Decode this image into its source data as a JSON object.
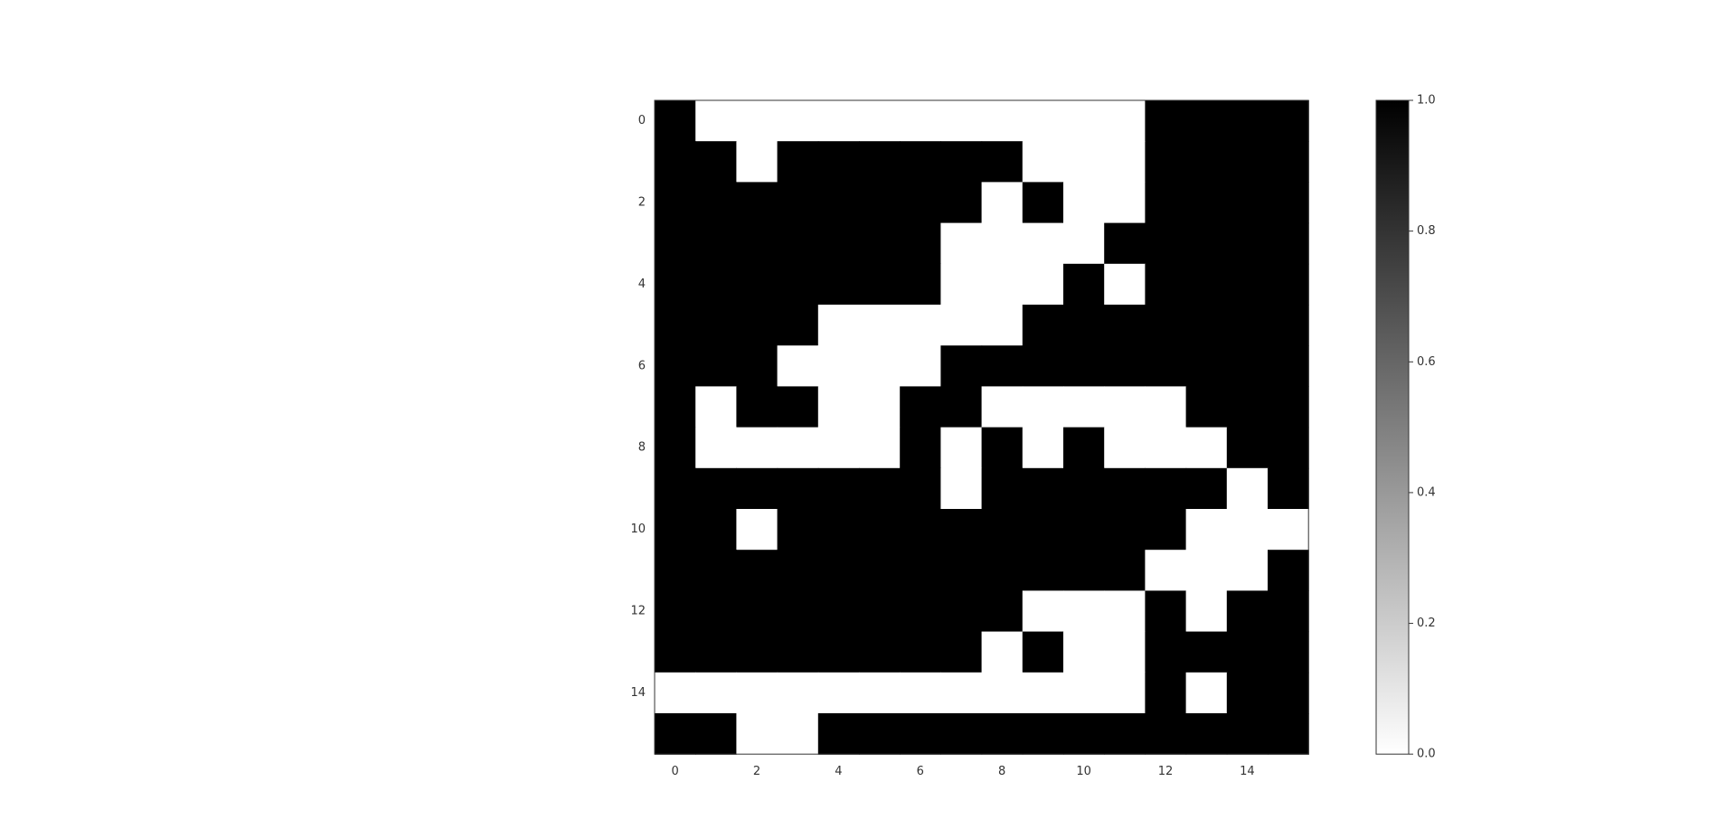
{
  "chart_data": {
    "type": "heatmap",
    "title": "",
    "xlabel": "",
    "ylabel": "",
    "colormap": "gray_r",
    "color_low": "#ffffff",
    "color_high": "#000000",
    "value_range": [
      0,
      1
    ],
    "x_ticks": [
      0,
      2,
      4,
      6,
      8,
      10,
      12,
      14
    ],
    "x_tick_labels": [
      "0",
      "2",
      "4",
      "6",
      "8",
      "10",
      "12",
      "14"
    ],
    "y_ticks": [
      0,
      2,
      4,
      6,
      8,
      10,
      12,
      14
    ],
    "y_tick_labels": [
      "0",
      "2",
      "4",
      "6",
      "8",
      "10",
      "12",
      "14"
    ],
    "colorbar_ticks": [
      0.0,
      0.2,
      0.4,
      0.6,
      0.8,
      1.0
    ],
    "colorbar_tick_labels": [
      "0.0",
      "0.2",
      "0.4",
      "0.6",
      "0.8",
      "1.0"
    ],
    "grid": false,
    "matrix": [
      [
        1,
        0,
        0,
        0,
        0,
        0,
        0,
        0,
        0,
        0,
        0,
        0,
        1,
        1,
        1,
        1
      ],
      [
        1,
        1,
        0,
        1,
        1,
        1,
        1,
        1,
        1,
        0,
        0,
        0,
        1,
        1,
        1,
        1
      ],
      [
        1,
        1,
        1,
        1,
        1,
        1,
        1,
        1,
        0,
        1,
        0,
        0,
        1,
        1,
        1,
        1
      ],
      [
        1,
        1,
        1,
        1,
        1,
        1,
        1,
        0,
        0,
        0,
        0,
        1,
        1,
        1,
        1,
        1
      ],
      [
        1,
        1,
        1,
        1,
        1,
        1,
        1,
        0,
        0,
        0,
        1,
        0,
        1,
        1,
        1,
        1
      ],
      [
        1,
        1,
        1,
        1,
        0,
        0,
        0,
        0,
        0,
        1,
        1,
        1,
        1,
        1,
        1,
        1
      ],
      [
        1,
        1,
        1,
        0,
        0,
        0,
        0,
        1,
        1,
        1,
        1,
        1,
        1,
        1,
        1,
        1
      ],
      [
        1,
        0,
        1,
        1,
        0,
        0,
        1,
        1,
        0,
        0,
        0,
        0,
        0,
        1,
        1,
        1
      ],
      [
        1,
        0,
        0,
        0,
        0,
        0,
        1,
        0,
        1,
        0,
        1,
        0,
        0,
        0,
        1,
        1
      ],
      [
        1,
        1,
        1,
        1,
        1,
        1,
        1,
        0,
        1,
        1,
        1,
        1,
        1,
        1,
        0,
        1
      ],
      [
        1,
        1,
        0,
        1,
        1,
        1,
        1,
        1,
        1,
        1,
        1,
        1,
        1,
        0,
        0,
        0
      ],
      [
        1,
        1,
        1,
        1,
        1,
        1,
        1,
        1,
        1,
        1,
        1,
        1,
        0,
        0,
        0,
        1
      ],
      [
        1,
        1,
        1,
        1,
        1,
        1,
        1,
        1,
        1,
        0,
        0,
        0,
        1,
        0,
        1,
        1
      ],
      [
        1,
        1,
        1,
        1,
        1,
        1,
        1,
        1,
        0,
        1,
        0,
        0,
        1,
        1,
        1,
        1
      ],
      [
        0,
        0,
        0,
        0,
        0,
        0,
        0,
        0,
        0,
        0,
        0,
        0,
        1,
        0,
        1,
        1
      ],
      [
        1,
        1,
        0,
        0,
        1,
        1,
        1,
        1,
        1,
        1,
        1,
        1,
        1,
        1,
        1,
        1
      ]
    ]
  }
}
